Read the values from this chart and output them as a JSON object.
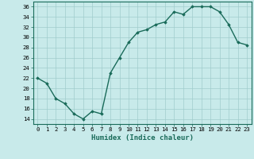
{
  "xlabel": "Humidex (Indice chaleur)",
  "x": [
    0,
    1,
    2,
    3,
    4,
    5,
    6,
    7,
    8,
    9,
    10,
    11,
    12,
    13,
    14,
    15,
    16,
    17,
    18,
    19,
    20,
    21,
    22,
    23
  ],
  "y": [
    22,
    21,
    18,
    17,
    15,
    14,
    15.5,
    15,
    23,
    26,
    29,
    31,
    31.5,
    32.5,
    33,
    35,
    34.5,
    36,
    36,
    36,
    35,
    32.5,
    29,
    28.5
  ],
  "line_color": "#1a6b5a",
  "marker": "D",
  "marker_size": 1.8,
  "bg_color": "#c8eaea",
  "grid_color": "#a0cccc",
  "ylim": [
    13,
    37
  ],
  "xlim": [
    -0.5,
    23.5
  ],
  "yticks": [
    14,
    16,
    18,
    20,
    22,
    24,
    26,
    28,
    30,
    32,
    34,
    36
  ],
  "xticks": [
    0,
    1,
    2,
    3,
    4,
    5,
    6,
    7,
    8,
    9,
    10,
    11,
    12,
    13,
    14,
    15,
    16,
    17,
    18,
    19,
    20,
    21,
    22,
    23
  ],
  "tick_fontsize": 5.2,
  "xlabel_fontsize": 6.5,
  "linewidth": 1.0
}
